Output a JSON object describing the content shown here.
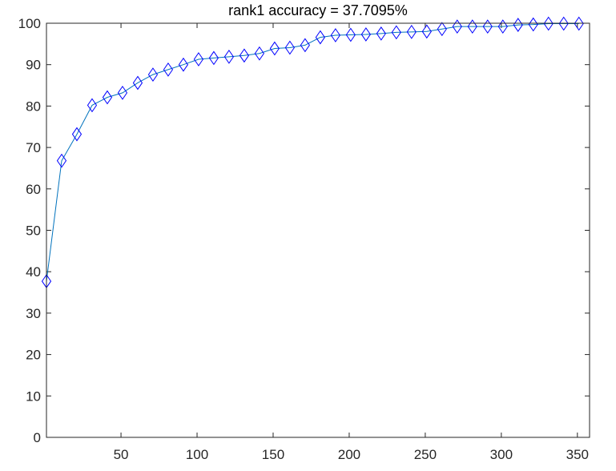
{
  "chart_data": {
    "type": "line",
    "title": "rank1 accuracy = 37.7095%",
    "xlabel": "",
    "ylabel": "",
    "xlim": [
      1,
      358
    ],
    "ylim": [
      0,
      100
    ],
    "grid": false,
    "box": true,
    "xticks": [
      50,
      100,
      150,
      200,
      250,
      300,
      350
    ],
    "yticks": [
      0,
      10,
      20,
      30,
      40,
      50,
      60,
      70,
      80,
      90,
      100
    ],
    "marker": "diamond",
    "line_color": "#0072bd",
    "marker_color": "#0000ff",
    "series": [
      {
        "x": [
          1,
          11,
          21,
          31,
          41,
          51,
          61,
          71,
          81,
          91,
          101,
          111,
          121,
          131,
          141,
          151,
          161,
          171,
          181,
          191,
          201,
          211,
          221,
          231,
          241,
          251,
          261,
          271,
          281,
          291,
          301,
          311,
          321,
          331,
          341,
          351
        ],
        "values": [
          37.7,
          66.8,
          73.2,
          80.2,
          82.1,
          83.2,
          85.6,
          87.6,
          88.8,
          90.0,
          91.3,
          91.6,
          91.9,
          92.2,
          92.7,
          93.9,
          94.1,
          94.7,
          96.6,
          97.1,
          97.2,
          97.3,
          97.5,
          97.8,
          97.9,
          98.0,
          98.6,
          99.2,
          99.2,
          99.2,
          99.2,
          99.6,
          99.7,
          99.9,
          99.9,
          99.9
        ]
      }
    ]
  }
}
